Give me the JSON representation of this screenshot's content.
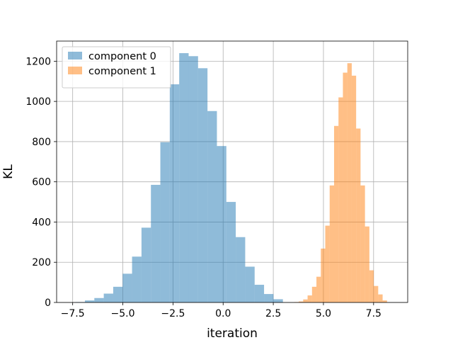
{
  "chart_data": {
    "type": "bar",
    "subtype": "histogram",
    "title": "",
    "xlabel": "iteration",
    "ylabel": "KL",
    "xlim": [
      -8.3,
      9.2
    ],
    "ylim": [
      0,
      1300
    ],
    "xticks": [
      -7.5,
      -5.0,
      -2.5,
      0.0,
      2.5,
      5.0,
      7.5
    ],
    "xtick_labels": [
      "−7.5",
      "−5.0",
      "−2.5",
      "0.0",
      "2.5",
      "5.0",
      "7.5"
    ],
    "yticks": [
      0,
      200,
      400,
      600,
      800,
      1000,
      1200
    ],
    "ytick_labels": [
      "0",
      "200",
      "400",
      "600",
      "800",
      "1000",
      "1200"
    ],
    "grid": true,
    "legend_position": "top-left",
    "series": [
      {
        "name": "component 0",
        "color": "#1f77b4",
        "alpha": 0.5,
        "bin_start": -7.36,
        "bin_width": 0.47,
        "counts": [
          2,
          10,
          22,
          44,
          78,
          143,
          228,
          372,
          585,
          797,
          1085,
          1240,
          1225,
          1165,
          952,
          778,
          500,
          325,
          178,
          88,
          42,
          16
        ]
      },
      {
        "name": "component 1",
        "color": "#ff7f0e",
        "alpha": 0.5,
        "bin_start": 3.55,
        "bin_width": 0.22,
        "counts": [
          2,
          5,
          15,
          35,
          78,
          128,
          268,
          382,
          582,
          878,
          1020,
          1143,
          1190,
          1128,
          865,
          582,
          378,
          160,
          82,
          40,
          10
        ]
      }
    ]
  }
}
